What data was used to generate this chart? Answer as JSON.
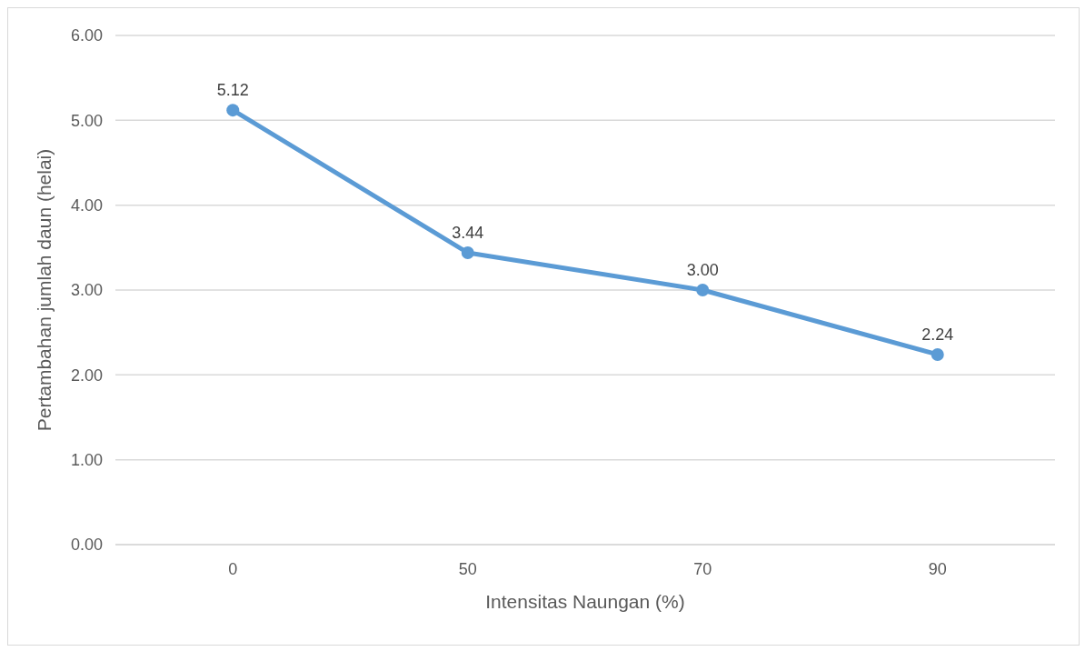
{
  "chart_data": {
    "type": "line",
    "xlabel": "Intensitas Naungan (%)",
    "ylabel": "Pertambahan jumlah daun (helai)",
    "categories": [
      "0",
      "50",
      "70",
      "90"
    ],
    "values": [
      5.12,
      3.44,
      3.0,
      2.24
    ],
    "value_labels": [
      "5.12",
      "3.44",
      "3.00",
      "2.24"
    ],
    "color": "#5b9bd5",
    "ylim": [
      0,
      6
    ],
    "yticks": [
      {
        "value": 0,
        "label": "0.00"
      },
      {
        "value": 1,
        "label": "1.00"
      },
      {
        "value": 2,
        "label": "2.00"
      },
      {
        "value": 3,
        "label": "3.00"
      },
      {
        "value": 4,
        "label": "4.00"
      },
      {
        "value": 5,
        "label": "5.00"
      },
      {
        "value": 6,
        "label": "6.00"
      }
    ],
    "grid": "y",
    "marker": "circle",
    "line_style": "solid"
  }
}
